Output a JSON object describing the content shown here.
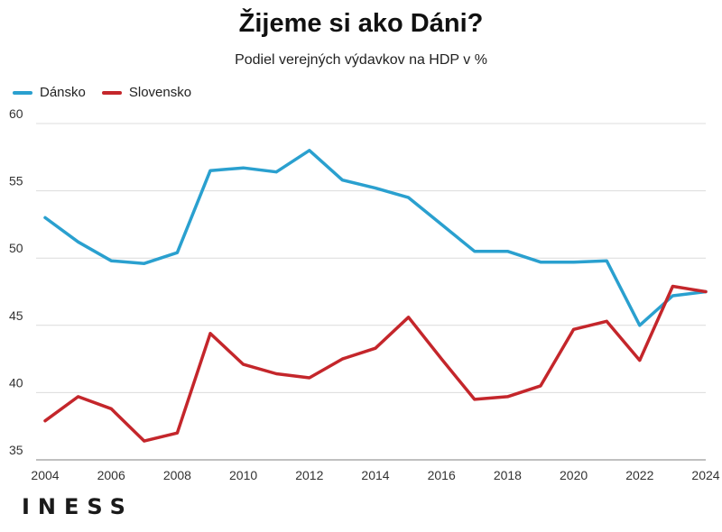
{
  "chart_data": {
    "type": "line",
    "title": "Žijeme si ako Dáni?",
    "subtitle": "Podiel verejných výdavkov na HDP v %",
    "x": [
      2004,
      2005,
      2006,
      2007,
      2008,
      2009,
      2010,
      2011,
      2012,
      2013,
      2014,
      2015,
      2016,
      2017,
      2018,
      2019,
      2020,
      2021,
      2022,
      2023,
      2024
    ],
    "xticks": [
      "2004",
      "2006",
      "2008",
      "2010",
      "2012",
      "2014",
      "2016",
      "2018",
      "2020",
      "2022",
      "2024"
    ],
    "yticks": [
      "35",
      "40",
      "45",
      "50",
      "55",
      "60"
    ],
    "ylim": [
      35,
      60
    ],
    "xlim": [
      2004,
      2024
    ],
    "grid": true,
    "legend_position": "top-left",
    "series": [
      {
        "name": "Dánsko",
        "color": "#2aa0cf",
        "values": [
          53.0,
          51.2,
          49.8,
          49.6,
          50.4,
          56.5,
          56.7,
          56.4,
          58.0,
          55.8,
          55.2,
          54.5,
          52.5,
          50.5,
          50.5,
          49.7,
          49.7,
          49.8,
          45.0,
          47.2,
          47.5
        ]
      },
      {
        "name": "Slovensko",
        "color": "#c4262b",
        "values": [
          37.9,
          39.7,
          38.8,
          36.4,
          37.0,
          44.4,
          42.1,
          41.4,
          41.1,
          42.5,
          43.3,
          45.6,
          42.5,
          39.5,
          39.7,
          40.5,
          44.7,
          45.3,
          42.4,
          47.9,
          47.5
        ]
      }
    ]
  },
  "logo_text": "INESS"
}
